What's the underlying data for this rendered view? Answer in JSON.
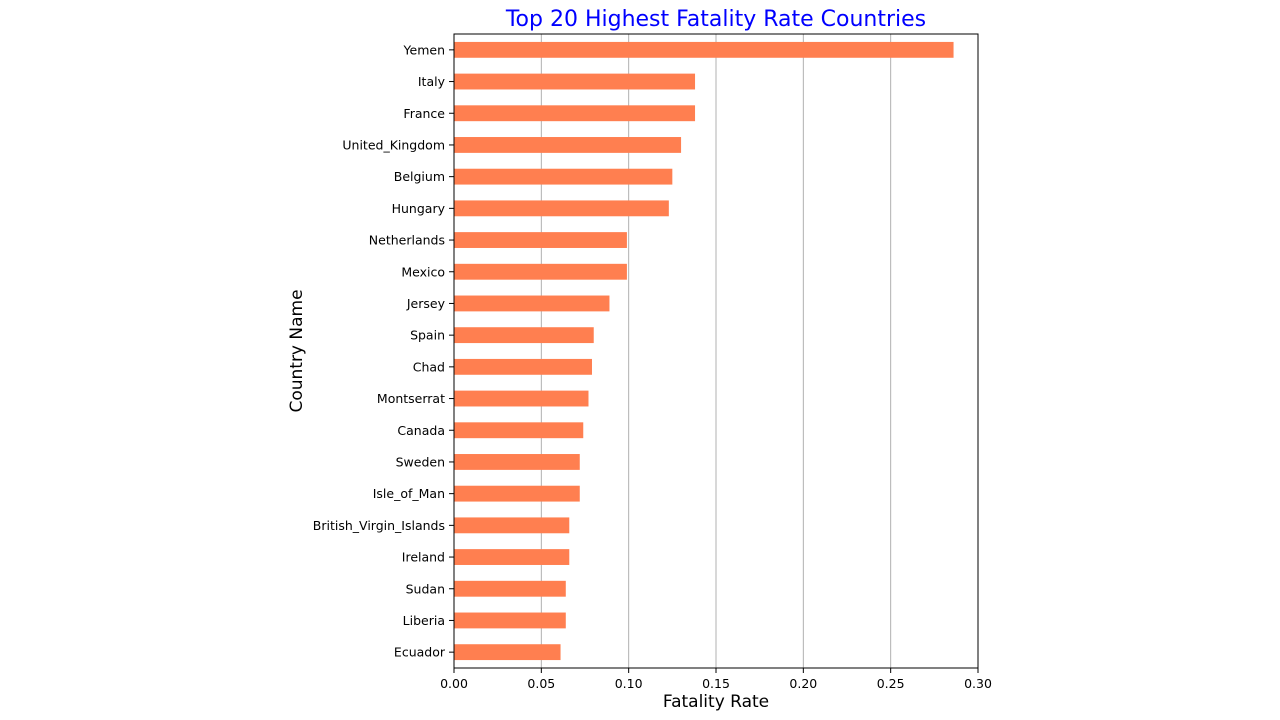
{
  "chart_data": {
    "type": "bar",
    "orientation": "horizontal",
    "title": "Top 20 Highest Fatality Rate Countries",
    "title_color": "#0000ff",
    "xlabel": "Fatality Rate",
    "ylabel": "Country Name",
    "bar_color": "#ff7f50",
    "grid": "x-axis only",
    "xlim": [
      0,
      0.3
    ],
    "xticks": [
      "0.00",
      "0.05",
      "0.10",
      "0.15",
      "0.20",
      "0.25",
      "0.30"
    ],
    "categories": [
      "Yemen",
      "Italy",
      "France",
      "United_Kingdom",
      "Belgium",
      "Hungary",
      "Netherlands",
      "Mexico",
      "Jersey",
      "Spain",
      "Chad",
      "Montserrat",
      "Canada",
      "Sweden",
      "Isle_of_Man",
      "British_Virgin_Islands",
      "Ireland",
      "Sudan",
      "Liberia",
      "Ecuador"
    ],
    "values": [
      0.286,
      0.138,
      0.138,
      0.13,
      0.125,
      0.123,
      0.099,
      0.099,
      0.089,
      0.08,
      0.079,
      0.077,
      0.074,
      0.072,
      0.072,
      0.066,
      0.066,
      0.064,
      0.064,
      0.061
    ]
  }
}
